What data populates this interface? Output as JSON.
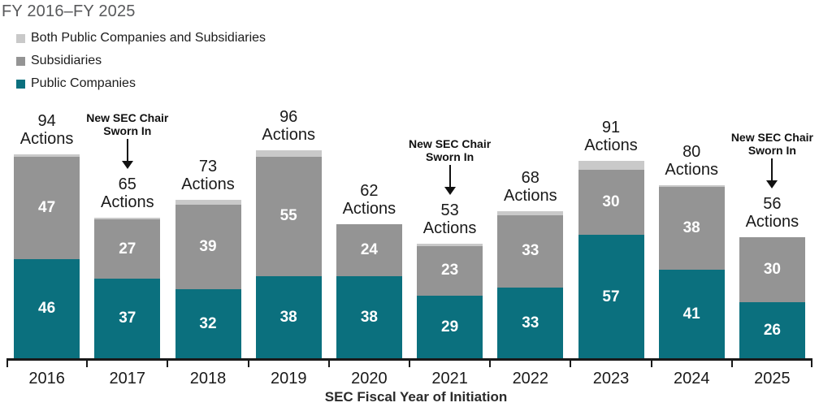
{
  "title": "FY 2016–FY 2025",
  "legend": [
    {
      "label": "Both Public Companies and Subsidiaries",
      "color": "#c9c9c9"
    },
    {
      "label": "Subsidiaries",
      "color": "#949494"
    },
    {
      "label": "Public Companies",
      "color": "#0b707e"
    }
  ],
  "chart_data": {
    "type": "bar",
    "stacked": true,
    "title": "FY 2016–FY 2025",
    "xlabel": "SEC Fiscal Year of Initiation",
    "categories": [
      "2016",
      "2017",
      "2018",
      "2019",
      "2020",
      "2021",
      "2022",
      "2023",
      "2024",
      "2025"
    ],
    "series": [
      {
        "name": "Public Companies",
        "color": "#0b707e",
        "values": [
          46,
          37,
          32,
          38,
          38,
          29,
          33,
          57,
          41,
          26
        ]
      },
      {
        "name": "Subsidiaries",
        "color": "#949494",
        "values": [
          47,
          27,
          39,
          55,
          24,
          23,
          33,
          30,
          38,
          30
        ]
      },
      {
        "name": "Both Public Companies and Subsidiaries",
        "color": "#c9c9c9",
        "values": [
          1,
          1,
          2,
          3,
          0,
          1,
          2,
          4,
          1,
          0
        ]
      }
    ],
    "totals": [
      94,
      65,
      73,
      96,
      62,
      53,
      68,
      91,
      80,
      56
    ],
    "total_suffix": "Actions",
    "annotations": [
      {
        "category": "2017",
        "lines": [
          "New SEC Chair",
          "Sworn In"
        ]
      },
      {
        "category": "2021",
        "lines": [
          "New SEC Chair",
          "Sworn In"
        ]
      },
      {
        "category": "2025",
        "lines": [
          "New SEC Chair",
          "Sworn In"
        ]
      }
    ],
    "ylim": [
      0,
      100
    ],
    "grid": false,
    "legend_position": "top-left",
    "value_label_color": "#ffffff",
    "text_color": "#1a1a1a"
  }
}
